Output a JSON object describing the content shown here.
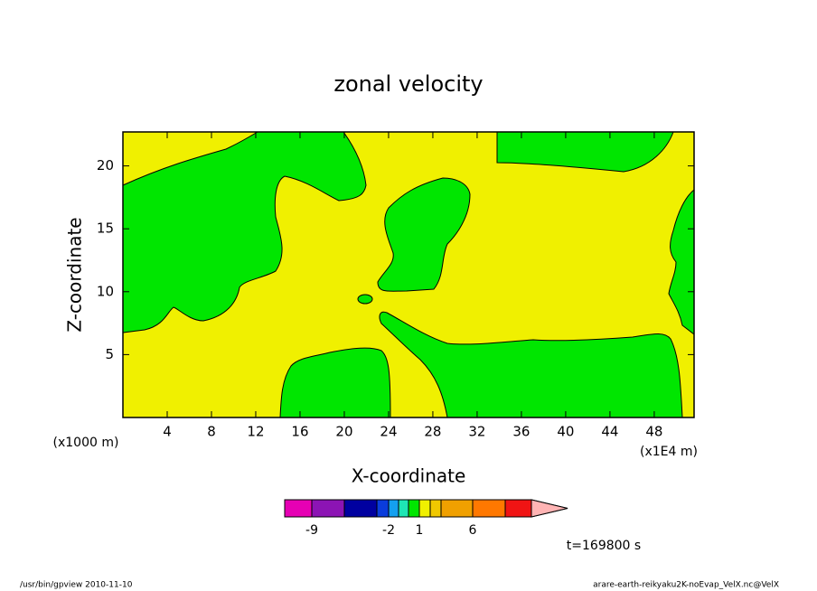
{
  "chart_data": {
    "type": "contour",
    "title": "zonal velocity",
    "x_label": "X-coordinate",
    "y_label": "Z-coordinate",
    "x_unit_left": "(x1000 m)",
    "x_unit_right": "(x1E4 m)",
    "xlim": [
      0,
      51.6
    ],
    "xticks": [
      4,
      8,
      12,
      16,
      20,
      24,
      28,
      32,
      36,
      40,
      44,
      48
    ],
    "ylim": [
      0,
      22.7
    ],
    "yticks": [
      5,
      10,
      15,
      20
    ],
    "colorbar": {
      "colors": [
        "#e600b4",
        "#8c14b4",
        "#0000a0",
        "#0a3cdc",
        "#14a0f0",
        "#1ee6b4",
        "#00e600",
        "#f0f000",
        "#f0c800",
        "#f0a000",
        "#ff7800",
        "#f01414",
        "#fa7878",
        "#ffb4b4"
      ],
      "labels": [
        -9,
        -2,
        1,
        6
      ]
    },
    "time_label": "t=169800 s",
    "footer_left": "/usr/bin/gpview   2010-11-10",
    "footer_right": "arare-earth-reikyaku2K-noEvap_VelX.nc@VelX"
  }
}
